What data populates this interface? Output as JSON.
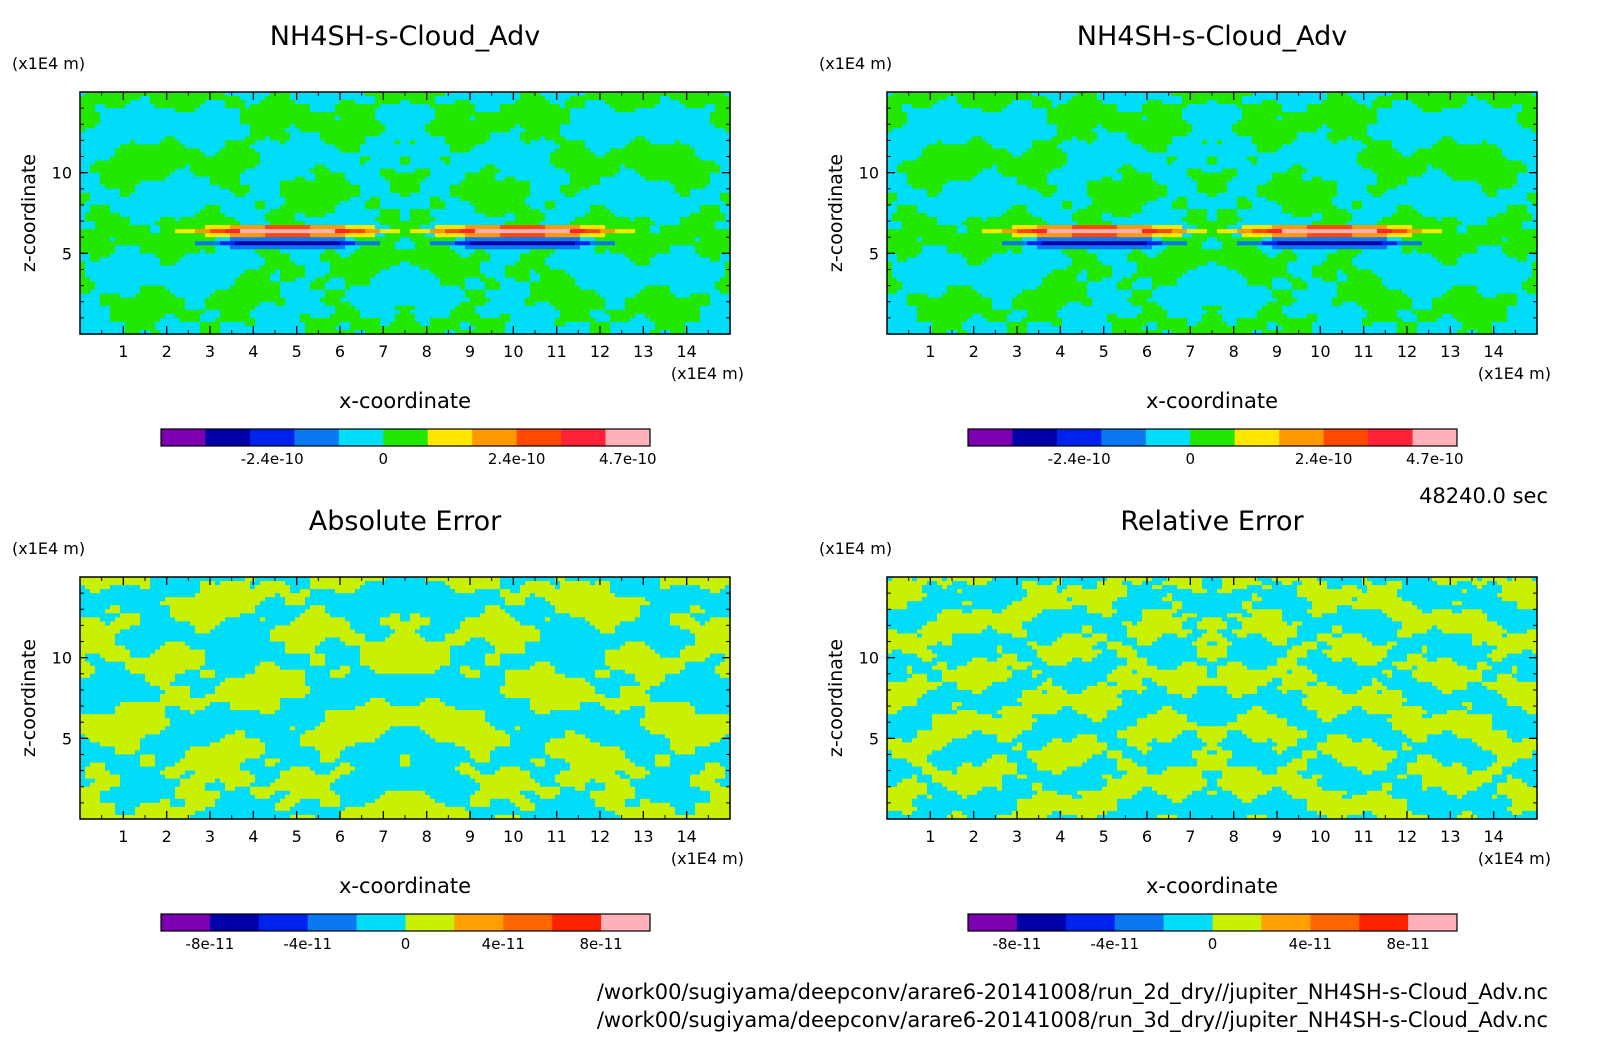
{
  "time_label": "48240.0 sec",
  "files": [
    "/work00/sugiyama/deepconv/arare6-20141008/run_2d_dry//jupiter_NH4SH-s-Cloud_Adv.nc",
    "/work00/sugiyama/deepconv/arare6-20141008/run_3d_dry//jupiter_NH4SH-s-Cloud_Adv.nc"
  ],
  "chart_data": [
    {
      "type": "heatmap",
      "title": "NH4SH-s-Cloud_Adv",
      "xlabel": "x-coordinate",
      "ylabel": "z-coordinate",
      "x_unit": "(x1E4 m)",
      "y_unit": "(x1E4 m)",
      "xlim": [
        0,
        15
      ],
      "ylim": [
        0,
        15
      ],
      "x_ticks": [
        "1",
        "2",
        "3",
        "4",
        "5",
        "6",
        "7",
        "8",
        "9",
        "10",
        "11",
        "12",
        "13",
        "14"
      ],
      "y_ticks": [
        "5",
        "10"
      ],
      "pattern": "field",
      "colorbar": {
        "colors": [
          "#7a00b0",
          "#0000a8",
          "#0022ee",
          "#0a78f0",
          "#00ddf8",
          "#22e800",
          "#ffe600",
          "#ff9900",
          "#ff4800",
          "#ff2238",
          "#ffb0b8"
        ],
        "labels": [
          "-2.4e-10",
          "0",
          "2.4e-10",
          "4.7e-10"
        ]
      }
    },
    {
      "type": "heatmap",
      "title": "NH4SH-s-Cloud_Adv",
      "xlabel": "x-coordinate",
      "ylabel": "z-coordinate",
      "x_unit": "(x1E4 m)",
      "y_unit": "(x1E4 m)",
      "xlim": [
        0,
        15
      ],
      "ylim": [
        0,
        15
      ],
      "x_ticks": [
        "1",
        "2",
        "3",
        "4",
        "5",
        "6",
        "7",
        "8",
        "9",
        "10",
        "11",
        "12",
        "13",
        "14"
      ],
      "y_ticks": [
        "5",
        "10"
      ],
      "pattern": "field",
      "colorbar": {
        "colors": [
          "#7a00b0",
          "#0000a8",
          "#0022ee",
          "#0a78f0",
          "#00ddf8",
          "#22e800",
          "#ffe600",
          "#ff9900",
          "#ff4800",
          "#ff2238",
          "#ffb0b8"
        ],
        "labels": [
          "-2.4e-10",
          "0",
          "2.4e-10",
          "4.7e-10"
        ]
      }
    },
    {
      "type": "heatmap",
      "title": "Absolute Error",
      "xlabel": "x-coordinate",
      "ylabel": "z-coordinate",
      "x_unit": "(x1E4 m)",
      "y_unit": "(x1E4 m)",
      "xlim": [
        0,
        15
      ],
      "ylim": [
        0,
        15
      ],
      "x_ticks": [
        "1",
        "2",
        "3",
        "4",
        "5",
        "6",
        "7",
        "8",
        "9",
        "10",
        "11",
        "12",
        "13",
        "14"
      ],
      "y_ticks": [
        "5",
        "10"
      ],
      "pattern": "abs_error",
      "colorbar": {
        "colors": [
          "#7a00b0",
          "#0000a8",
          "#0022ee",
          "#0a78f0",
          "#00ddf8",
          "#c8f000",
          "#ffa000",
          "#ff6600",
          "#ff2200",
          "#ffb0b8"
        ],
        "labels": [
          "-8e-11",
          "-4e-11",
          "0",
          "4e-11",
          "8e-11"
        ]
      }
    },
    {
      "type": "heatmap",
      "title": "Relative Error",
      "xlabel": "x-coordinate",
      "ylabel": "z-coordinate",
      "x_unit": "(x1E4 m)",
      "y_unit": "(x1E4 m)",
      "xlim": [
        0,
        15
      ],
      "ylim": [
        0,
        15
      ],
      "x_ticks": [
        "1",
        "2",
        "3",
        "4",
        "5",
        "6",
        "7",
        "8",
        "9",
        "10",
        "11",
        "12",
        "13",
        "14"
      ],
      "y_ticks": [
        "5",
        "10"
      ],
      "pattern": "rel_error",
      "colorbar": {
        "colors": [
          "#7a00b0",
          "#0000a8",
          "#0022ee",
          "#0a78f0",
          "#00ddf8",
          "#c8f000",
          "#ffa000",
          "#ff6600",
          "#ff2200",
          "#ffb0b8"
        ],
        "labels": [
          "-8e-11",
          "-4e-11",
          "0",
          "4e-11",
          "8e-11"
        ]
      }
    }
  ]
}
